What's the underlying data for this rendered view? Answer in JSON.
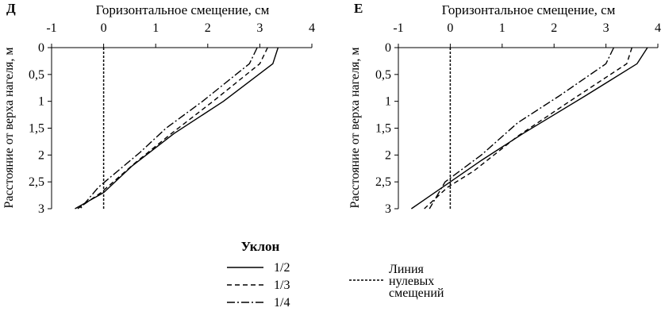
{
  "chart_data": [
    {
      "type": "line",
      "panel_label": "Д",
      "xlabel": "Горизонтальное смещение, см",
      "ylabel": "Расстояние от верха нагеля, м",
      "xlim": [
        -1,
        4
      ],
      "ylim": [
        0,
        3
      ],
      "y_inverted": true,
      "x_ticks": [
        "-1",
        "0",
        "1",
        "2",
        "3",
        "4"
      ],
      "y_ticks": [
        "0",
        "0,5",
        "1",
        "1,5",
        "2",
        "2,5",
        "3"
      ],
      "series": [
        {
          "name": "1/2",
          "dash": "solid",
          "x": [
            3.35,
            3.25,
            2.3,
            1.35,
            0.55,
            0.0,
            -0.55
          ],
          "y": [
            0,
            0.3,
            1.0,
            1.6,
            2.2,
            2.7,
            3.0
          ]
        },
        {
          "name": "1/3",
          "dash": "dashed",
          "x": [
            3.15,
            3.0,
            2.1,
            1.3,
            0.6,
            -0.05,
            -0.5
          ],
          "y": [
            0,
            0.3,
            1.0,
            1.6,
            2.15,
            2.7,
            3.0
          ]
        },
        {
          "name": "1/4",
          "dash": "dashdot",
          "x": [
            2.95,
            2.8,
            1.9,
            1.2,
            0.7,
            -0.1,
            -0.45
          ],
          "y": [
            0,
            0.3,
            1.0,
            1.5,
            1.95,
            2.6,
            3.0
          ]
        }
      ],
      "reference_line": {
        "name": "Линия нулевых смещений",
        "x": 0
      }
    },
    {
      "type": "line",
      "panel_label": "Е",
      "xlabel": "Горизонтальное смещение, см",
      "ylabel": "Расстояние от верха нагеля, м",
      "xlim": [
        -1,
        4
      ],
      "ylim": [
        0,
        3
      ],
      "y_inverted": true,
      "x_ticks": [
        "-1",
        "0",
        "1",
        "2",
        "3",
        "4"
      ],
      "y_ticks": [
        "0",
        "0,5",
        "1",
        "1,5",
        "2",
        "2,5",
        "3"
      ],
      "series": [
        {
          "name": "1/2",
          "dash": "solid",
          "x": [
            3.8,
            3.6,
            2.6,
            1.4,
            0.6,
            0.0,
            -0.75
          ],
          "y": [
            0,
            0.3,
            0.9,
            1.6,
            2.1,
            2.5,
            3.0
          ]
        },
        {
          "name": "1/3",
          "dash": "dashed",
          "x": [
            3.5,
            3.4,
            2.3,
            1.3,
            0.45,
            -0.05,
            -0.5
          ],
          "y": [
            0,
            0.3,
            1.0,
            1.65,
            2.3,
            2.6,
            3.0
          ]
        },
        {
          "name": "1/4",
          "dash": "dashdot",
          "x": [
            3.15,
            3.0,
            2.1,
            1.3,
            0.6,
            -0.1,
            -0.4
          ],
          "y": [
            0,
            0.3,
            0.9,
            1.4,
            2.0,
            2.5,
            3.0
          ]
        }
      ],
      "reference_line": {
        "name": "Линия нулевых смещений",
        "x": 0
      }
    }
  ],
  "legend": {
    "title": "Уклон",
    "items": [
      "1/2",
      "1/3",
      "1/4"
    ],
    "zero_line_label": [
      "Линия",
      "нулевых",
      "смещений"
    ]
  }
}
